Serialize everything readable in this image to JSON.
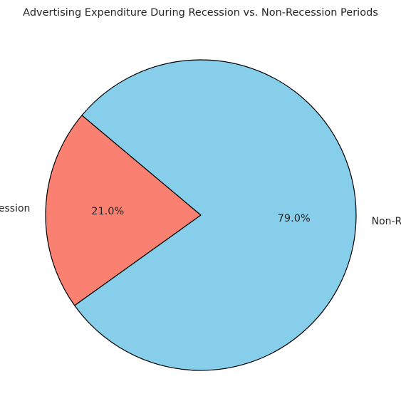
{
  "chart_data": {
    "type": "pie",
    "title": "Advertising Expenditure During Recession vs. Non-Recession Periods",
    "slices": [
      {
        "label": "Recession",
        "value": 21.0,
        "pct_label": "21.0%",
        "color": "#FA8072"
      },
      {
        "label": "Non-Recession",
        "value": 79.0,
        "pct_label": "79.0%",
        "color": "#87CEEB"
      }
    ],
    "start_angle_deg": 140,
    "direction": "counterclockwise",
    "edge_color": "#000000",
    "legend": "none"
  }
}
